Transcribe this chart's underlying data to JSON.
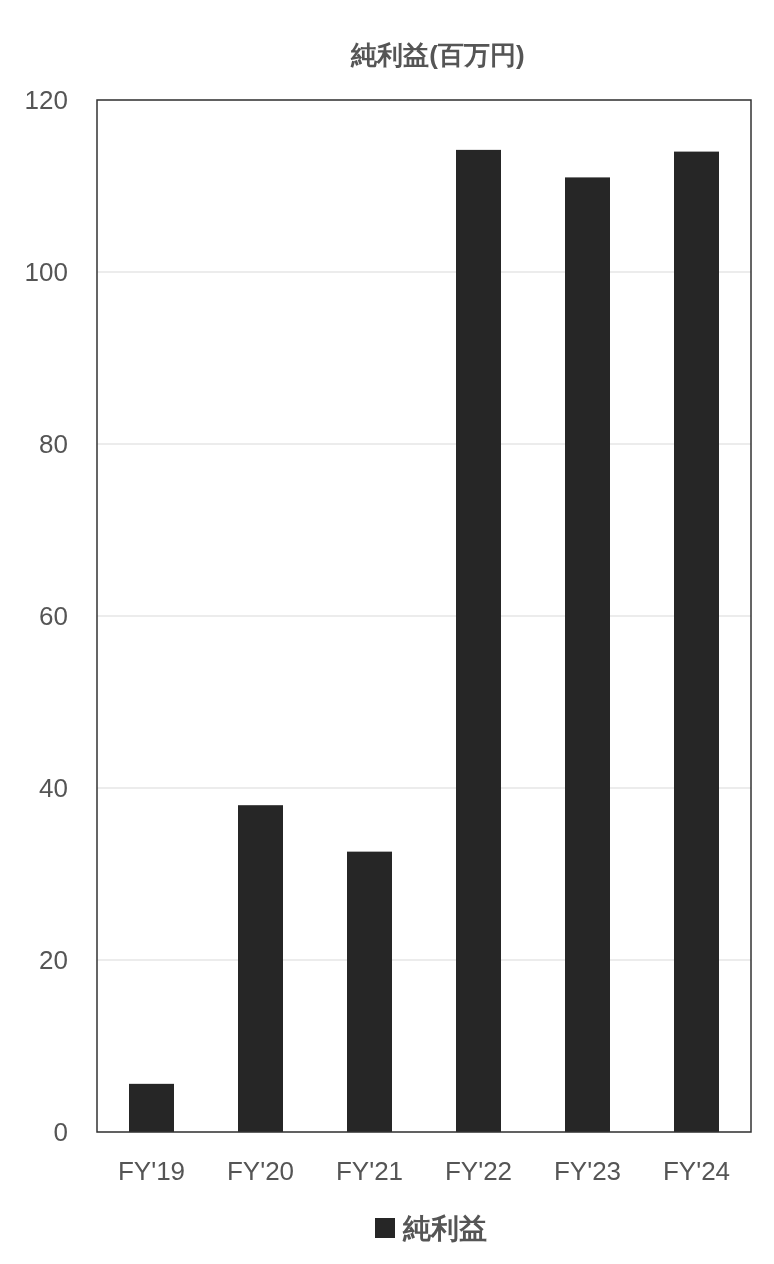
{
  "chart_data": {
    "type": "bar",
    "title": "純利益(百万円)",
    "categories": [
      "FY'19",
      "FY'20",
      "FY'21",
      "FY'22",
      "FY'23",
      "FY'24"
    ],
    "series": [
      {
        "name": "純利益",
        "color": "#262626",
        "values": [
          5.6,
          38.0,
          32.6,
          114.2,
          111.0,
          114.0
        ]
      }
    ],
    "ylim": [
      0,
      120
    ],
    "yticks": [
      0,
      20,
      40,
      60,
      80,
      100,
      120
    ],
    "grid": "y",
    "legend": "bottom"
  }
}
